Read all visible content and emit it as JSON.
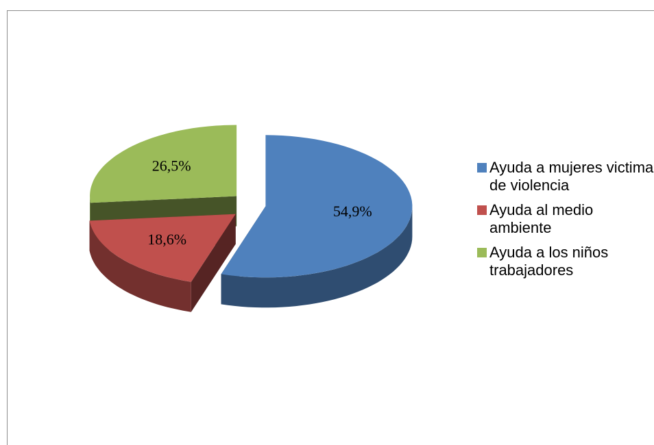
{
  "chart_data": {
    "type": "pie",
    "categories": [
      "Ayuda a mujeres victima de violencia",
      "Ayuda al medio ambiente",
      "Ayuda a los niños trabajadores"
    ],
    "values": [
      54.9,
      18.6,
      26.5
    ],
    "value_labels": [
      "54,9%",
      "18,6%",
      "26,5%"
    ],
    "colors": [
      "#4f81bd",
      "#c0504d",
      "#9bbb59"
    ],
    "legend": "right"
  }
}
